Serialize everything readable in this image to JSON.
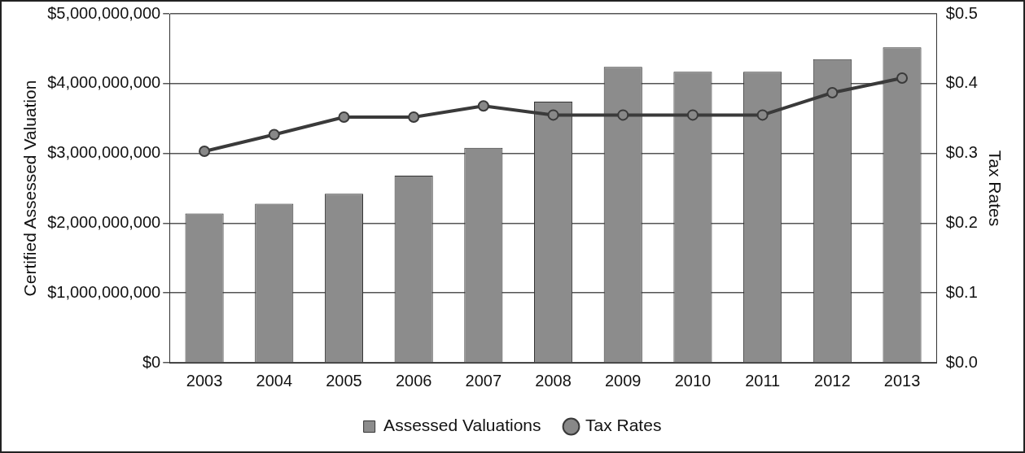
{
  "chart_data": {
    "type": "bar",
    "categories": [
      "2003",
      "2004",
      "2005",
      "2006",
      "2007",
      "2008",
      "2009",
      "2010",
      "2011",
      "2012",
      "2013"
    ],
    "series": [
      {
        "name": "Assessed Valuations",
        "color": "#8c8c8c",
        "values": [
          2140000000,
          2280000000,
          2420000000,
          2680000000,
          3080000000,
          3740000000,
          4240000000,
          4170000000,
          4170000000,
          4350000000,
          4520000000
        ]
      },
      {
        "name": "Tax Rates",
        "type": "line",
        "axis": "y2",
        "color": "#3a3a3a",
        "values": [
          0.303,
          0.327,
          0.352,
          0.352,
          0.368,
          0.355,
          0.355,
          0.355,
          0.355,
          0.387,
          0.408
        ]
      }
    ],
    "ylabel": "Certified Assessed Valuation",
    "y2label": "Tax Rates",
    "ylim": [
      0,
      5000000000
    ],
    "yticks": [
      {
        "value": 0,
        "label": "$0"
      },
      {
        "value": 1000000000,
        "label": "$1,000,000,000"
      },
      {
        "value": 2000000000,
        "label": "$2,000,000,000"
      },
      {
        "value": 3000000000,
        "label": "$3,000,000,000"
      },
      {
        "value": 4000000000,
        "label": "$4,000,000,000"
      },
      {
        "value": 5000000000,
        "label": "$5,000,000,000"
      }
    ],
    "y2lim": [
      0,
      0.5
    ],
    "y2ticks": [
      {
        "value": 0,
        "label": "$0.0"
      },
      {
        "value": 0.1,
        "label": "$0.1"
      },
      {
        "value": 0.2,
        "label": "$0.2"
      },
      {
        "value": 0.3,
        "label": "$0.3"
      },
      {
        "value": 0.4,
        "label": "$0.4"
      },
      {
        "value": 0.5,
        "label": "$0.5"
      }
    ],
    "grid": "y",
    "legend": "bottom",
    "marker": "circle"
  }
}
